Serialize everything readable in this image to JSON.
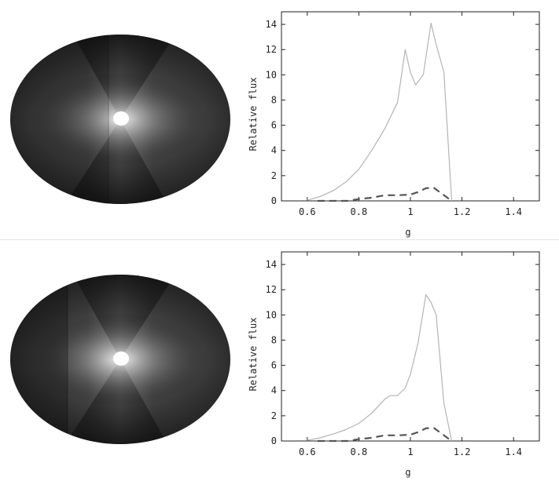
{
  "chart_data": [
    {
      "type": "line",
      "xlabel": "g",
      "ylabel": "Relative flux",
      "xlim": [
        0.5,
        1.5
      ],
      "ylim": [
        0,
        15
      ],
      "xticks": [
        0.6,
        0.8,
        1,
        1.2,
        1.4
      ],
      "xtick_labels": [
        "0.6",
        "0.8",
        "1",
        "1.2",
        "1.4"
      ],
      "yticks": [
        0,
        2,
        4,
        6,
        8,
        10,
        12,
        14
      ],
      "ytick_labels": [
        "0",
        "2",
        "4",
        "6",
        "8",
        "10",
        "12",
        "14"
      ],
      "grid": false,
      "series": [
        {
          "style": "solid",
          "color": "#b4b4b4",
          "x": [
            0.6,
            0.65,
            0.7,
            0.75,
            0.8,
            0.85,
            0.9,
            0.95,
            0.98,
            1.0,
            1.02,
            1.05,
            1.08,
            1.1,
            1.13,
            1.16
          ],
          "y": [
            0.05,
            0.35,
            0.8,
            1.5,
            2.5,
            4.0,
            5.7,
            7.8,
            12.0,
            10.2,
            9.2,
            10.0,
            14.1,
            12.4,
            10.2,
            0
          ]
        },
        {
          "style": "dashed",
          "color": "#555555",
          "x": [
            0.64,
            0.7,
            0.76,
            0.8,
            0.85,
            0.9,
            0.95,
            1.0,
            1.03,
            1.06,
            1.09,
            1.12,
            1.16
          ],
          "y": [
            0,
            0,
            0,
            0.15,
            0.25,
            0.45,
            0.45,
            0.5,
            0.7,
            1.0,
            1.05,
            0.6,
            0
          ]
        }
      ]
    },
    {
      "type": "line",
      "xlabel": "g",
      "ylabel": "Relative flux",
      "xlim": [
        0.5,
        1.5
      ],
      "ylim": [
        0,
        15
      ],
      "xticks": [
        0.6,
        0.8,
        1,
        1.2,
        1.4
      ],
      "xtick_labels": [
        "0.6",
        "0.8",
        "1",
        "1.2",
        "1.4"
      ],
      "yticks": [
        0,
        2,
        4,
        6,
        8,
        10,
        12,
        14
      ],
      "ytick_labels": [
        "0",
        "2",
        "4",
        "6",
        "8",
        "10",
        "12",
        "14"
      ],
      "grid": false,
      "series": [
        {
          "style": "solid",
          "color": "#b4b4b4",
          "x": [
            0.6,
            0.65,
            0.7,
            0.75,
            0.8,
            0.85,
            0.9,
            0.92,
            0.95,
            0.98,
            1.0,
            1.03,
            1.06,
            1.08,
            1.1,
            1.13,
            1.16
          ],
          "y": [
            0.05,
            0.25,
            0.55,
            0.9,
            1.4,
            2.2,
            3.3,
            3.6,
            3.6,
            4.2,
            5.3,
            7.8,
            11.6,
            11.0,
            10.0,
            3.0,
            0
          ]
        },
        {
          "style": "dashed",
          "color": "#555555",
          "x": [
            0.64,
            0.7,
            0.76,
            0.8,
            0.85,
            0.9,
            0.95,
            1.0,
            1.03,
            1.06,
            1.09,
            1.12,
            1.16
          ],
          "y": [
            0,
            0,
            0,
            0.15,
            0.25,
            0.45,
            0.45,
            0.5,
            0.7,
            1.0,
            1.05,
            0.6,
            0
          ]
        }
      ]
    }
  ],
  "disk_images": [
    {
      "colors": {
        "edge": "#2d2d2d",
        "mid": "#5a5a5a",
        "bright": "#f2f2f2",
        "dark": "#141414",
        "star": "#ffffff"
      }
    },
    {
      "colors": {
        "edge": "#2d2d2d",
        "mid": "#5a5a5a",
        "bright": "#f2f2f2",
        "dark": "#141414",
        "star": "#ffffff"
      }
    }
  ]
}
